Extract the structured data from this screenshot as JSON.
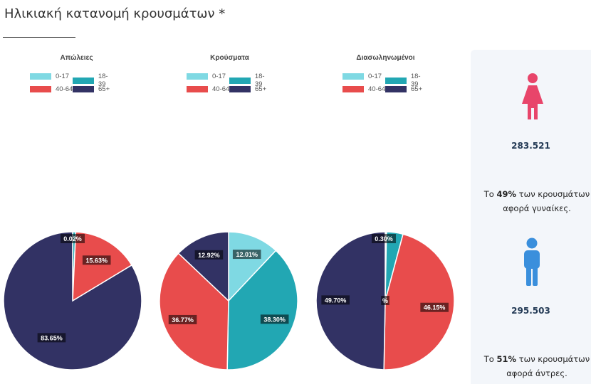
{
  "page": {
    "title": "Ηλικιακή κατανομή κρουσμάτων *"
  },
  "legend_labels": [
    "0-17",
    "18-39",
    "40-64",
    "65+"
  ],
  "colors": {
    "0-17": "#7fd9e3",
    "18-39": "#22a7b3",
    "40-64": "#e84c4c",
    "65+": "#323264",
    "female": "#e8456a",
    "male": "#3a8fdc"
  },
  "chart_data": [
    {
      "type": "pie",
      "title": "Απώλειες",
      "categories": [
        "0-17",
        "18-39",
        "40-64",
        "65+"
      ],
      "values": [
        0.02,
        0.7,
        15.63,
        83.65
      ],
      "labels": [
        "0.02%",
        "",
        "15.63%",
        "83.65%"
      ]
    },
    {
      "type": "pie",
      "title": "Κρούσματα",
      "categories": [
        "0-17",
        "18-39",
        "40-64",
        "65+"
      ],
      "values": [
        12.01,
        38.3,
        36.77,
        12.92
      ],
      "labels": [
        "12.01%",
        "38.30%",
        "36.77%",
        "12.92%"
      ]
    },
    {
      "type": "pie",
      "title": "Διασωληνωμένοι",
      "categories": [
        "0-17",
        "18-39",
        "40-64",
        "65+"
      ],
      "values": [
        0.3,
        3.85,
        46.15,
        49.7
      ],
      "labels": [
        "0.30%",
        "%",
        "46.15%",
        "49.70%"
      ]
    }
  ],
  "panel": {
    "female": {
      "icon": "female-icon",
      "count": "283.521",
      "note_prefix": "Το ",
      "note_pct": "49%",
      "note_suffix": " των κρουσμάτων αφορά γυναίκες."
    },
    "male": {
      "icon": "male-icon",
      "count": "295.503",
      "note_prefix": "Το ",
      "note_pct": "51%",
      "note_suffix": " των κρουσμάτων αφορά άντρες."
    }
  }
}
